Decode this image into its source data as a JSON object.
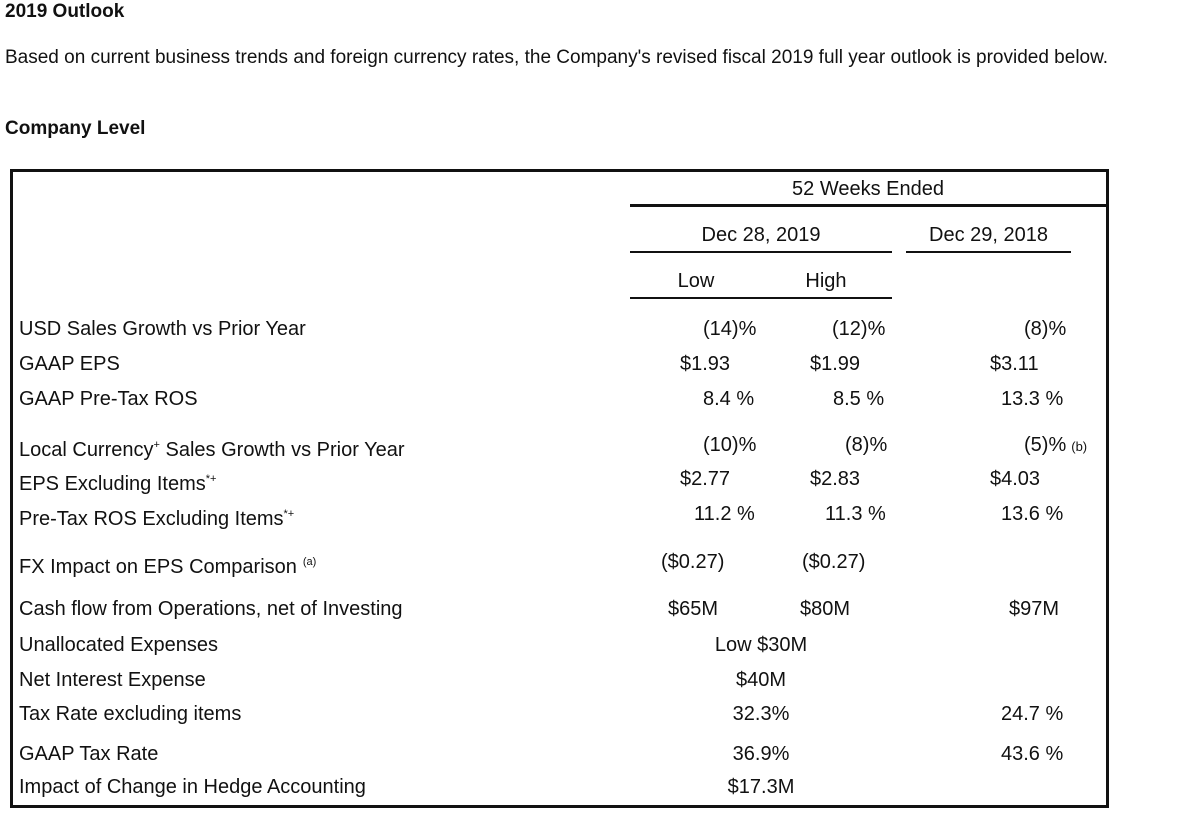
{
  "title": "2019 Outlook",
  "intro": "Based on current business trends and foreign currency rates, the Company's revised fiscal 2019 full year outlook is provided below.",
  "section": "Company Level",
  "table": {
    "period_header": "52 Weeks Ended",
    "col_2019": "Dec 28, 2019",
    "col_2018": "Dec 29, 2018",
    "low": "Low",
    "high": "High",
    "rows": [
      {
        "label": "USD Sales Growth vs Prior Year",
        "sup": "",
        "low": "(14)%",
        "high": "(12)%",
        "prior": "(8)%"
      },
      {
        "label": "GAAP EPS",
        "sup": "",
        "low": "$1.93",
        "high": "$1.99",
        "prior": "$3.11"
      },
      {
        "label": "GAAP Pre-Tax ROS",
        "sup": "",
        "low": "8.4 %",
        "high": "8.5 %",
        "prior": "13.3 %"
      },
      {
        "label": "Local Currency",
        "sup": "+",
        "label_suffix": " Sales Growth vs Prior Year",
        "low": "(10)%",
        "high": "(8)%",
        "prior": "(5)%",
        "prior_note": "(b)"
      },
      {
        "label": "EPS Excluding Items",
        "sup": "*+",
        "low": "$2.77",
        "high": "$2.83",
        "prior": "$4.03"
      },
      {
        "label": "Pre-Tax ROS Excluding Items",
        "sup": "*+",
        "low": "11.2 %",
        "high": "11.3 %",
        "prior": "13.6 %"
      },
      {
        "label": "FX Impact on EPS Comparison",
        "sup": "(a)",
        "low": "($0.27)",
        "high": "($0.27)",
        "prior": ""
      },
      {
        "label": "Cash flow from Operations, net of Investing",
        "sup": "",
        "low": "$65M",
        "high": "$80M",
        "prior": "$97M"
      },
      {
        "label": "Unallocated Expenses",
        "sup": "",
        "merged": "Low $30M",
        "prior": ""
      },
      {
        "label": "Net Interest Expense",
        "sup": "",
        "merged": "$40M",
        "prior": ""
      },
      {
        "label": "Tax Rate excluding items",
        "sup": "",
        "merged": "32.3%",
        "prior": "24.7 %"
      },
      {
        "label": "GAAP Tax Rate",
        "sup": "",
        "merged": "36.9%",
        "prior": "43.6 %"
      },
      {
        "label": "Impact of Change in Hedge Accounting",
        "sup": "",
        "merged": "$17.3M",
        "prior": ""
      }
    ]
  }
}
